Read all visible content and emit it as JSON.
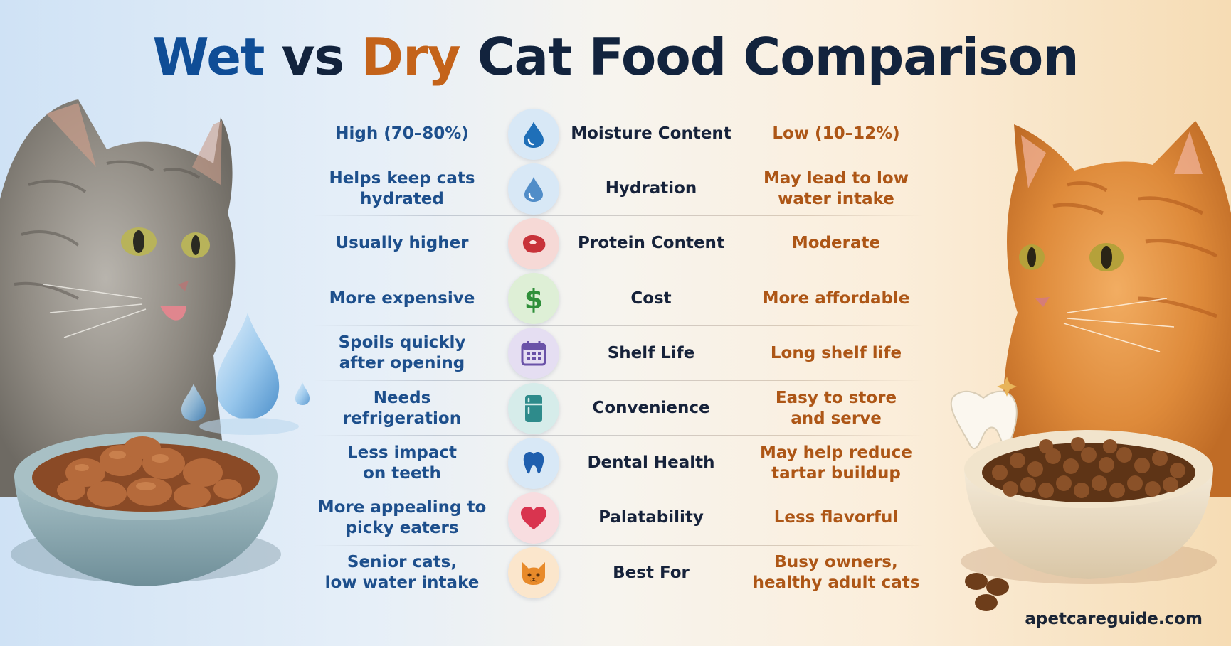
{
  "title": {
    "wet": "Wet",
    "vs": "vs",
    "dry": "Dry",
    "rest": "Cat Food Comparison"
  },
  "rows": [
    {
      "wet": "High (70–80%)",
      "label": "Moisture Content",
      "dry": "Low (10–12%)",
      "icon": "water-drop-icon",
      "icon_bg": "#d8e8f6",
      "icon_color": "#1f6fb8"
    },
    {
      "wet": "Helps keep cats\nhydrated",
      "label": "Hydration",
      "dry": "May lead to low\nwater intake",
      "icon": "hydration-drop-icon",
      "icon_bg": "#d8e8f6",
      "icon_color": "#3a7cc0"
    },
    {
      "wet": "Usually higher",
      "label": "Protein Content",
      "dry": "Moderate",
      "icon": "meat-steak-icon",
      "icon_bg": "#f6d9d6",
      "icon_color": "#c8333a"
    },
    {
      "wet": "More expensive",
      "label": "Cost",
      "dry": "More affordable",
      "icon": "dollar-sign-icon",
      "icon_bg": "#deefd6",
      "icon_color": "#2f8f3a"
    },
    {
      "wet": "Spoils quickly\nafter opening",
      "label": "Shelf Life",
      "dry": "Long shelf life",
      "icon": "calendar-icon",
      "icon_bg": "#e5def2",
      "icon_color": "#6a52a8"
    },
    {
      "wet": "Needs\nrefrigeration",
      "label": "Convenience",
      "dry": "Easy to store\nand serve",
      "icon": "refrigerator-icon",
      "icon_bg": "#d6ecea",
      "icon_color": "#2e8b8b"
    },
    {
      "wet": "Less impact\non teeth",
      "label": "Dental Health",
      "dry": "May help reduce\ntartar buildup",
      "icon": "tooth-icon",
      "icon_bg": "#d8e8f6",
      "icon_color": "#1f5fae"
    },
    {
      "wet": "More appealing to\npicky eaters",
      "label": "Palatability",
      "dry": "Less flavorful",
      "icon": "heart-icon",
      "icon_bg": "#f8dde0",
      "icon_color": "#d9344f"
    },
    {
      "wet": "Senior cats,\nlow water intake",
      "label": "Best For",
      "dry": "Busy owners,\nhealthy adult cats",
      "icon": "cat-face-icon",
      "icon_bg": "#fbe6cc",
      "icon_color": "#e88a2a"
    }
  ],
  "footer": "apetcareguide.com",
  "colors": {
    "wet_text": "#1d4f8c",
    "dry_text": "#ad5616",
    "title_dark": "#12233d"
  }
}
